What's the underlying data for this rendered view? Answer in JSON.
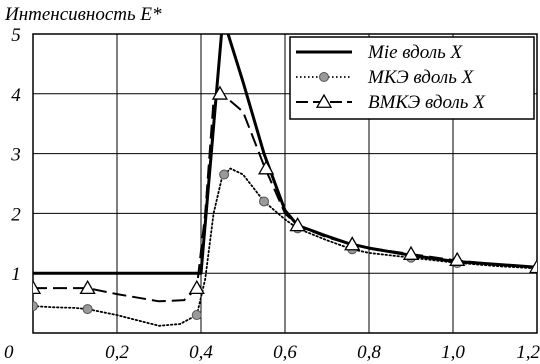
{
  "chart_data": {
    "type": "line",
    "title": "Интенсивность E*",
    "xlabel": "",
    "ylabel": "",
    "xlim": [
      0,
      1.2
    ],
    "ylim": [
      0,
      5
    ],
    "grid": true,
    "legend_position": "top-right",
    "x_ticks": [
      {
        "value": 0,
        "label": "0"
      },
      {
        "value": 0.2,
        "label": "0,2"
      },
      {
        "value": 0.4,
        "label": "0,4"
      },
      {
        "value": 0.6,
        "label": "0,6"
      },
      {
        "value": 0.8,
        "label": "0,8"
      },
      {
        "value": 1.0,
        "label": "1,0"
      },
      {
        "value": 1.2,
        "label": "1,2"
      }
    ],
    "y_ticks": [
      {
        "value": 1,
        "label": "1"
      },
      {
        "value": 2,
        "label": "2"
      },
      {
        "value": 3,
        "label": "3"
      },
      {
        "value": 4,
        "label": "4"
      },
      {
        "value": 5,
        "label": "5"
      }
    ],
    "series": [
      {
        "name": "Mie вдоль  X",
        "style": "solid",
        "color": "#000000",
        "marker": "none",
        "x": [
          0,
          0.395,
          0.4,
          0.45,
          0.46,
          0.5,
          0.55,
          0.6,
          0.63,
          0.7,
          0.75,
          0.8,
          0.9,
          1.0,
          1.1,
          1.2
        ],
        "y": [
          1.0,
          1.0,
          1.0,
          5.1,
          5.1,
          4.2,
          3.0,
          2.05,
          1.8,
          1.62,
          1.5,
          1.42,
          1.3,
          1.2,
          1.15,
          1.1
        ],
        "markers_x": [],
        "markers_y": []
      },
      {
        "name": "МКЭ вдоль  X",
        "style": "dotted",
        "color": "#000000",
        "marker": "circle",
        "x": [
          0,
          0.05,
          0.1,
          0.13,
          0.2,
          0.3,
          0.35,
          0.39,
          0.41,
          0.43,
          0.45,
          0.47,
          0.5,
          0.55,
          0.6,
          0.63,
          0.7,
          0.76,
          0.8,
          0.9,
          1.0,
          1.1,
          1.2
        ],
        "y": [
          0.45,
          0.43,
          0.42,
          0.4,
          0.3,
          0.12,
          0.15,
          0.3,
          0.9,
          2.0,
          2.6,
          2.75,
          2.65,
          2.2,
          1.9,
          1.75,
          1.55,
          1.4,
          1.34,
          1.26,
          1.18,
          1.12,
          1.08
        ],
        "markers_x": [
          0,
          0.13,
          0.39,
          0.455,
          0.55,
          0.63,
          0.76,
          0.9,
          1.01
        ],
        "markers_y": [
          0.45,
          0.4,
          0.3,
          2.65,
          2.2,
          1.75,
          1.4,
          1.26,
          1.17
        ]
      },
      {
        "name": "ВМКЭ вдоль X",
        "style": "dashed",
        "color": "#000000",
        "marker": "triangle",
        "x": [
          0,
          0.05,
          0.13,
          0.2,
          0.3,
          0.36,
          0.39,
          0.41,
          0.43,
          0.45,
          0.5,
          0.55,
          0.6,
          0.63,
          0.7,
          0.76,
          0.8,
          0.9,
          1.0,
          1.1,
          1.2
        ],
        "y": [
          0.75,
          0.75,
          0.75,
          0.65,
          0.53,
          0.55,
          0.75,
          2.0,
          3.9,
          4.0,
          3.7,
          2.8,
          2.0,
          1.8,
          1.6,
          1.48,
          1.42,
          1.32,
          1.22,
          1.15,
          1.1
        ],
        "markers_x": [
          0,
          0.13,
          0.39,
          0.445,
          0.555,
          0.63,
          0.76,
          0.9,
          1.01,
          1.2
        ],
        "markers_y": [
          0.75,
          0.75,
          0.75,
          4.0,
          2.75,
          1.8,
          1.48,
          1.32,
          1.22,
          1.1
        ]
      }
    ]
  }
}
